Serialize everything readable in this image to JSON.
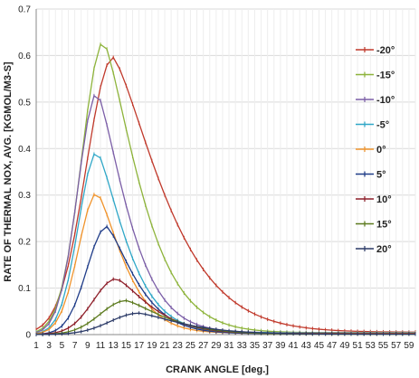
{
  "chart_data": {
    "type": "line",
    "title": "",
    "xlabel": "CRANK ANGLE  [deg.]",
    "ylabel": "RATE OF THERMAL NOX, AVG. [KGMOL/M3-S]",
    "xlim": [
      1,
      60
    ],
    "ylim": [
      0,
      0.7
    ],
    "y_ticks": [
      0,
      0.1,
      0.2,
      0.3,
      0.4,
      0.5,
      0.6,
      0.7
    ],
    "y_tick_labels": [
      "0",
      "0.1",
      "0.2",
      "0.3",
      "0.4",
      "0.5",
      "0.6",
      "0.7"
    ],
    "x_ticks": [
      1,
      3,
      5,
      7,
      9,
      11,
      13,
      15,
      17,
      19,
      21,
      23,
      25,
      27,
      29,
      31,
      33,
      35,
      37,
      39,
      41,
      43,
      45,
      47,
      49,
      51,
      53,
      55,
      57,
      59
    ],
    "x_tick_labels": [
      "1",
      "3",
      "5",
      "7",
      "9",
      "11",
      "13",
      "15",
      "17",
      "19",
      "21",
      "23",
      "25",
      "27",
      "29",
      "31",
      "33",
      "35",
      "37",
      "39",
      "41",
      "43",
      "45",
      "47",
      "49",
      "51",
      "53",
      "55",
      "57",
      "59"
    ],
    "grid": true,
    "legend_position": "right",
    "series": [
      {
        "name": "-20°",
        "color": "#c0392b",
        "peak_x": 13,
        "peak_y": 0.595,
        "rise": 4.2,
        "decay": 10.5,
        "tail": 0.005
      },
      {
        "name": "-15°",
        "color": "#8db33a",
        "peak_x": 11.5,
        "peak_y": 0.63,
        "rise": 3.4,
        "decay": 7.5,
        "tail": 0.004
      },
      {
        "name": "-10°",
        "color": "#7b5ea7",
        "peak_x": 10.5,
        "peak_y": 0.52,
        "rise": 3.0,
        "decay": 6.3,
        "tail": 0.004
      },
      {
        "name": "-5°",
        "color": "#2fa7c7",
        "peak_x": 10.5,
        "peak_y": 0.393,
        "rise": 2.9,
        "decay": 6.0,
        "tail": 0.004
      },
      {
        "name": "0°",
        "color": "#f0932b",
        "peak_x": 10.5,
        "peak_y": 0.305,
        "rise": 2.9,
        "decay": 5.6,
        "tail": 0.003
      },
      {
        "name": "5°",
        "color": "#1f3c88",
        "peak_x": 12,
        "peak_y": 0.232,
        "rise": 3.1,
        "decay": 6.0,
        "tail": 0.002
      },
      {
        "name": "10°",
        "color": "#8e1f2a",
        "peak_x": 13.5,
        "peak_y": 0.12,
        "rise": 3.6,
        "decay": 7.0,
        "tail": 0.002
      },
      {
        "name": "15°",
        "color": "#5c7a1e",
        "peak_x": 15,
        "peak_y": 0.073,
        "rise": 4.0,
        "decay": 8.0,
        "tail": 0.001
      },
      {
        "name": "20°",
        "color": "#2b3a67",
        "peak_x": 17,
        "peak_y": 0.046,
        "rise": 4.5,
        "decay": 9.0,
        "tail": 0.001
      }
    ]
  }
}
